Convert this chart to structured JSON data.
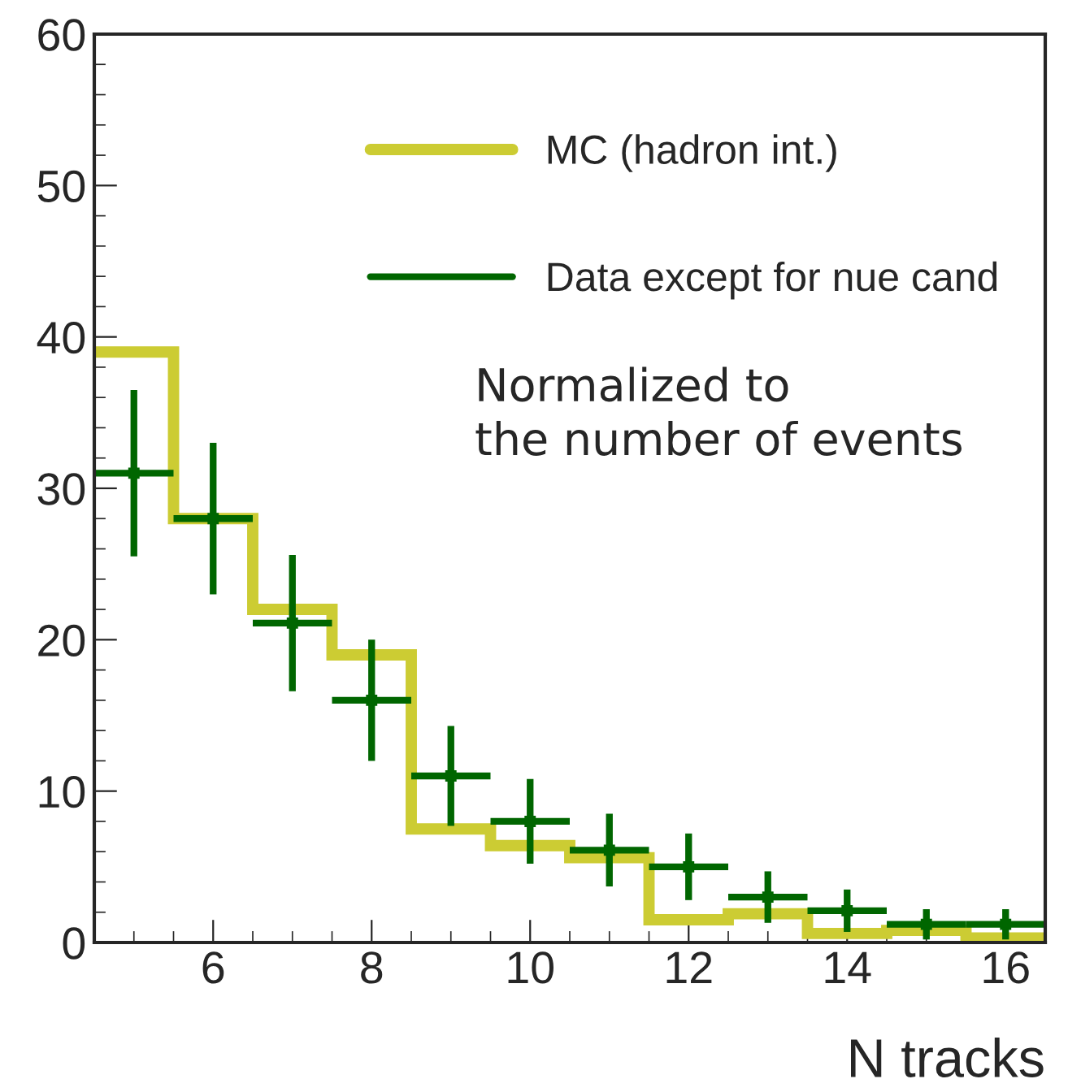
{
  "chart_data": {
    "type": "histogram",
    "xlabel": "N tracks",
    "bins": [
      4.5,
      5.5,
      6.5,
      7.5,
      8.5,
      9.5,
      10.5,
      11.5,
      12.5,
      13.5,
      14.5,
      15.5,
      16.5
    ],
    "series": [
      {
        "name": "MC (hadron int.)",
        "color": "#cccc33",
        "values": [
          39,
          28,
          22,
          19,
          7.5,
          6.4,
          5.6,
          1.5,
          1.9,
          0.6,
          0.8,
          0.3
        ]
      },
      {
        "name": "Data except for nue cand",
        "type": "scatter",
        "color": "#006600",
        "marker": "square",
        "x": [
          5,
          6,
          7,
          8,
          9,
          10,
          11,
          12,
          13,
          14,
          15,
          16
        ],
        "values": [
          31,
          28,
          21.1,
          16,
          11,
          8,
          6.1,
          5,
          3,
          2.1,
          1.2,
          1.2
        ],
        "errors": [
          5.5,
          5,
          4.5,
          4,
          3.3,
          2.8,
          2.4,
          2.2,
          1.7,
          1.4,
          1,
          1
        ],
        "xerrors": [
          0.5,
          0.5,
          0.5,
          0.5,
          0.5,
          0.5,
          0.5,
          0.5,
          0.5,
          0.5,
          0.5,
          0.5
        ]
      }
    ],
    "xlim": [
      4.5,
      16.5
    ],
    "xticks": [
      6,
      8,
      10,
      12,
      14,
      16
    ],
    "ylim": [
      0,
      60
    ],
    "yticks": [
      0,
      10,
      20,
      30,
      40,
      50,
      60
    ],
    "grid": false,
    "legend": "top right",
    "annotations": [
      "Normalized to\nthe number of events"
    ]
  }
}
